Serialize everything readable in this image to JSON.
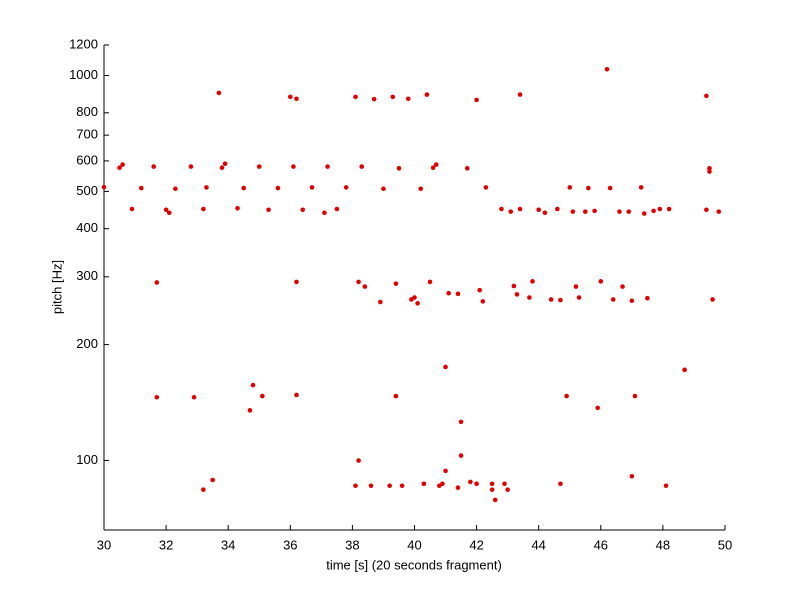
{
  "chart_data": {
    "type": "scatter",
    "xlabel": "time [s] (20 seconds fragment)",
    "ylabel": "pitch [Hz]",
    "xlim": [
      30,
      50
    ],
    "xticks": [
      30,
      32,
      34,
      36,
      38,
      40,
      42,
      44,
      46,
      48,
      50
    ],
    "ylim": [
      66,
      1200
    ],
    "yticks": [
      100,
      200,
      300,
      400,
      500,
      600,
      700,
      800,
      1000,
      1200
    ],
    "ylog": true,
    "color": "#e00000",
    "x": [
      30.0,
      30.5,
      30.6,
      30.9,
      31.2,
      31.6,
      31.7,
      31.7,
      32.0,
      32.1,
      32.3,
      32.8,
      32.9,
      33.2,
      33.2,
      33.3,
      33.5,
      33.7,
      33.8,
      33.9,
      34.3,
      34.5,
      34.7,
      34.8,
      35.0,
      35.1,
      35.3,
      35.6,
      36.0,
      36.1,
      36.2,
      36.2,
      36.2,
      36.4,
      36.7,
      37.1,
      37.2,
      37.5,
      37.8,
      38.1,
      38.1,
      38.2,
      38.2,
      38.3,
      38.4,
      38.6,
      38.7,
      38.9,
      39.0,
      39.2,
      39.3,
      39.4,
      39.4,
      39.5,
      39.6,
      39.8,
      39.9,
      40.0,
      40.1,
      40.2,
      40.3,
      40.3,
      40.4,
      40.5,
      40.6,
      40.7,
      40.8,
      40.9,
      41.0,
      41.0,
      41.1,
      41.4,
      41.4,
      41.5,
      41.5,
      41.7,
      41.8,
      42.0,
      42.0,
      42.1,
      42.2,
      42.3,
      42.5,
      42.5,
      42.6,
      42.8,
      42.9,
      43.0,
      43.1,
      43.2,
      43.3,
      43.4,
      43.4,
      43.7,
      43.8,
      44.0,
      44.2,
      44.4,
      44.6,
      44.7,
      44.7,
      44.9,
      45.0,
      45.1,
      45.2,
      45.3,
      45.5,
      45.6,
      45.8,
      45.9,
      46.0,
      46.2,
      46.3,
      46.4,
      46.6,
      46.7,
      46.9,
      47.0,
      47.0,
      47.1,
      47.3,
      47.4,
      47.5,
      47.7,
      47.9,
      48.1,
      48.2,
      48.7,
      49.4,
      49.5,
      49.5,
      49.6,
      49.8,
      49.4
    ],
    "y": [
      513,
      576,
      587,
      450,
      510,
      580,
      290,
      146,
      448,
      440,
      508,
      580,
      146,
      450,
      84,
      512,
      89,
      901,
      576,
      590,
      452,
      510,
      135,
      157,
      580,
      147,
      448,
      510,
      880,
      580,
      291,
      148,
      870,
      448,
      512,
      440,
      580,
      450,
      512,
      86,
      880,
      291,
      100,
      580,
      283,
      86,
      868,
      258,
      508,
      86,
      880,
      288,
      147,
      574,
      86,
      870,
      262,
      265,
      256,
      508,
      87,
      87,
      892,
      291,
      576,
      587,
      86,
      87,
      175,
      94,
      272,
      271,
      85,
      126,
      103,
      574,
      88,
      87,
      864,
      277,
      259,
      512,
      87,
      84,
      79,
      450,
      87,
      84,
      443,
      284,
      270,
      892,
      450,
      265,
      292,
      448,
      440,
      262,
      450,
      87,
      261,
      147,
      512,
      443,
      283,
      265,
      443,
      510,
      445,
      137,
      292,
      1038,
      510,
      262,
      443,
      283,
      443,
      91,
      260,
      147,
      512,
      438,
      264,
      445,
      450,
      86,
      450,
      172,
      885,
      574,
      563,
      262,
      443,
      448
    ]
  }
}
